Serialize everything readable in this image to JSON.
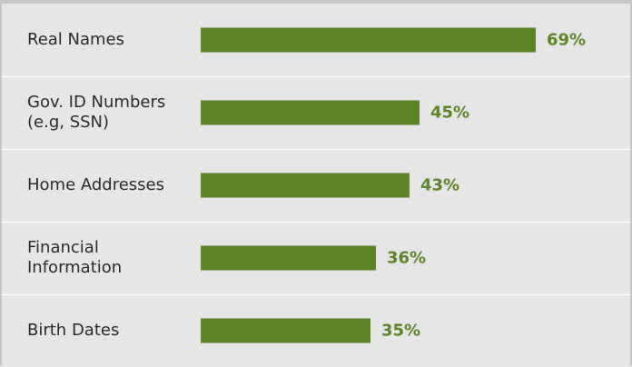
{
  "chart_data": {
    "type": "bar",
    "orientation": "horizontal",
    "categories": [
      "Real Names",
      "Gov. ID Numbers\n(e.g, SSN)",
      "Home Addresses",
      "Financial\nInformation",
      "Birth Dates"
    ],
    "values": [
      69,
      45,
      43,
      36,
      35
    ],
    "value_labels": [
      "69%",
      "45%",
      "43%",
      "36%",
      "35%"
    ],
    "xlim": [
      0,
      100
    ],
    "grid": false,
    "legend": "none",
    "bar_color": "#5c8526",
    "background_color": "#e6e6e6"
  }
}
